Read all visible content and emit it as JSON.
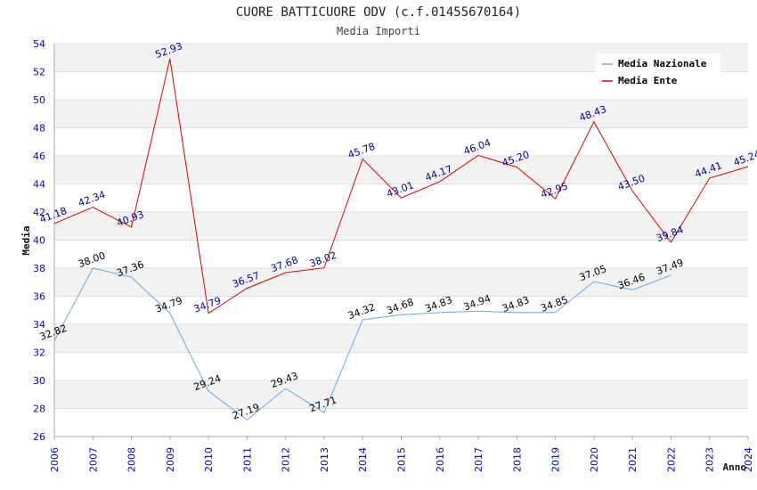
{
  "chart_data": {
    "type": "line",
    "title": "CUORE BATTICUORE ODV (c.f.01455670164)",
    "subtitle": "Media Importi",
    "xlabel": "Anno",
    "ylabel": "Media",
    "categories": [
      "2006",
      "2007",
      "2008",
      "2009",
      "2010",
      "2011",
      "2012",
      "2013",
      "2014",
      "2015",
      "2016",
      "2017",
      "2018",
      "2019",
      "2020",
      "2021",
      "2022",
      "2023",
      "2024"
    ],
    "ylim": [
      26,
      54
    ],
    "yticks": [
      26,
      28,
      30,
      32,
      34,
      36,
      38,
      40,
      42,
      44,
      46,
      48,
      50,
      52,
      54
    ],
    "grid": true,
    "legend_position": "top-right",
    "series": [
      {
        "name": "Media Nazionale",
        "color": "#66aaee",
        "label_color": "#000000",
        "values": [
          32.82,
          38.0,
          37.36,
          34.79,
          29.24,
          27.19,
          29.43,
          27.71,
          34.32,
          34.68,
          34.83,
          34.94,
          34.83,
          34.85,
          37.05,
          36.46,
          37.49,
          null,
          null
        ],
        "labels": [
          "32.82",
          "38.00",
          "37.36",
          "34.79",
          "29.24",
          "27.19",
          "29.43",
          "27.71",
          "34.32",
          "34.68",
          "34.83",
          "34.94",
          "34.83",
          "34.85",
          "37.05",
          "36.46",
          "37.49",
          "",
          ""
        ]
      },
      {
        "name": "Media Ente",
        "color": "#dd0000",
        "label_color": "#000099",
        "values": [
          41.18,
          42.34,
          40.93,
          52.93,
          34.79,
          36.57,
          37.68,
          38.02,
          45.78,
          43.01,
          44.17,
          46.04,
          45.2,
          42.95,
          48.43,
          43.5,
          39.84,
          44.41,
          45.24
        ],
        "labels": [
          "41.18",
          "42.34",
          "40.93",
          "52.93",
          "34.79",
          "36.57",
          "37.68",
          "38.02",
          "45.78",
          "43.01",
          "44.17",
          "46.04",
          "45.20",
          "42.95",
          "48.43",
          "43.50",
          "39.84",
          "44.41",
          "45.24"
        ]
      }
    ]
  }
}
